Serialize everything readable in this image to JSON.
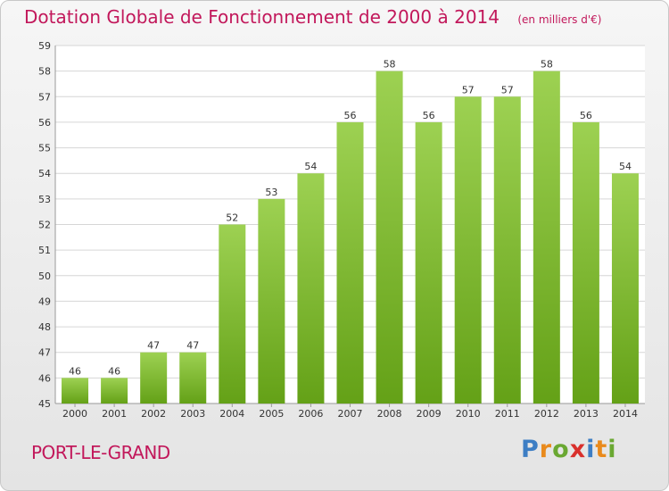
{
  "header": {
    "title": "Dotation Globale de Fonctionnement de 2000 à 2014",
    "subtitle": "(en milliers d'€)"
  },
  "footer": {
    "commune": "PORT-LE-GRAND",
    "logo": "Proxiti"
  },
  "colors": {
    "title": "#c2185b",
    "bar_top": "#9dd152",
    "bar_bottom": "#64a117",
    "grid": "#d6d6d6"
  },
  "chart_data": {
    "type": "bar",
    "title": "Dotation Globale de Fonctionnement de 2000 à 2014",
    "subtitle": "(en milliers d'€)",
    "xlabel": "",
    "ylabel": "",
    "ylim": [
      45,
      59
    ],
    "ytick_step": 1,
    "grid": true,
    "legend": "none",
    "categories": [
      "2000",
      "2001",
      "2002",
      "2003",
      "2004",
      "2005",
      "2006",
      "2007",
      "2008",
      "2009",
      "2010",
      "2011",
      "2012",
      "2013",
      "2014"
    ],
    "values": [
      46,
      46,
      47,
      47,
      52,
      53,
      54,
      56,
      58,
      56,
      57,
      57,
      58,
      56,
      54
    ]
  }
}
